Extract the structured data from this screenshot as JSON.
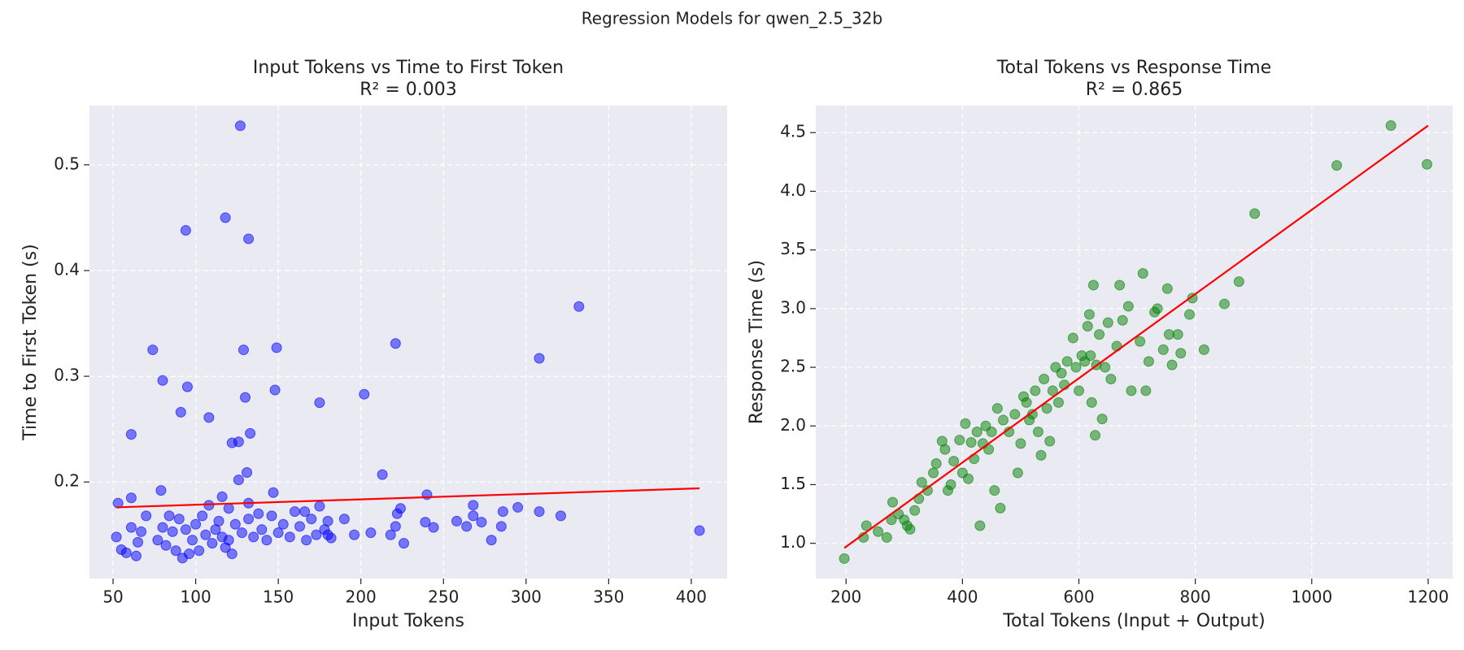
{
  "title": "Regression Models for qwen_2.5_32b",
  "chart_data": [
    {
      "type": "scatter",
      "title": "Input Tokens vs Time to First Token",
      "subtitle": "R² = 0.003",
      "xlabel": "Input Tokens",
      "ylabel": "Time to First Token (s)",
      "color": "blue",
      "grid": true,
      "xlim": [
        35.7,
        421.7
      ],
      "ylim": [
        0.1087,
        0.556
      ],
      "xticks": [
        50,
        100,
        150,
        200,
        250,
        300,
        350,
        400
      ],
      "yticks": [
        0.2,
        0.3,
        0.4,
        0.5
      ],
      "x": [
        127,
        94,
        118,
        132,
        332,
        74,
        129,
        149,
        221,
        308,
        80,
        95,
        148,
        130,
        202,
        175,
        91,
        108,
        61,
        133,
        122,
        126,
        131,
        213,
        126,
        79,
        147,
        240,
        116,
        61,
        53,
        132,
        175,
        224,
        268,
        295,
        308,
        321,
        405,
        52,
        55,
        58,
        61,
        64,
        65,
        67,
        70,
        77,
        80,
        82,
        84,
        86,
        88,
        90,
        92,
        94,
        96,
        98,
        100,
        102,
        104,
        106,
        108,
        110,
        112,
        114,
        116,
        118,
        120,
        122,
        124,
        128,
        132,
        135,
        138,
        140,
        143,
        146,
        150,
        153,
        157,
        160,
        163,
        167,
        170,
        173,
        178,
        180,
        182,
        190,
        196,
        206,
        218,
        221,
        222,
        226,
        239,
        244,
        258,
        264,
        268,
        273,
        279,
        285,
        286,
        180,
        166,
        120
      ],
      "y": [
        0.537,
        0.438,
        0.45,
        0.43,
        0.366,
        0.325,
        0.325,
        0.327,
        0.331,
        0.317,
        0.296,
        0.29,
        0.287,
        0.28,
        0.283,
        0.275,
        0.266,
        0.261,
        0.245,
        0.246,
        0.237,
        0.238,
        0.209,
        0.207,
        0.202,
        0.192,
        0.19,
        0.188,
        0.186,
        0.185,
        0.18,
        0.18,
        0.177,
        0.175,
        0.178,
        0.176,
        0.172,
        0.168,
        0.154,
        0.148,
        0.136,
        0.133,
        0.157,
        0.13,
        0.143,
        0.153,
        0.168,
        0.145,
        0.157,
        0.14,
        0.168,
        0.153,
        0.135,
        0.165,
        0.128,
        0.155,
        0.132,
        0.145,
        0.16,
        0.135,
        0.168,
        0.15,
        0.178,
        0.142,
        0.155,
        0.163,
        0.148,
        0.138,
        0.175,
        0.132,
        0.16,
        0.152,
        0.165,
        0.148,
        0.17,
        0.155,
        0.145,
        0.168,
        0.152,
        0.16,
        0.148,
        0.172,
        0.158,
        0.145,
        0.165,
        0.15,
        0.155,
        0.163,
        0.147,
        0.165,
        0.15,
        0.152,
        0.15,
        0.158,
        0.17,
        0.142,
        0.162,
        0.157,
        0.163,
        0.158,
        0.168,
        0.162,
        0.145,
        0.158,
        0.172,
        0.15,
        0.172,
        0.145
      ],
      "fit": {
        "color": "red",
        "x": [
          52,
          405
        ],
        "y": [
          0.176,
          0.194
        ]
      }
    },
    {
      "type": "scatter",
      "title": "Total Tokens vs Response Time",
      "subtitle": "R² = 0.865",
      "xlabel": "Total Tokens (Input + Output)",
      "ylabel": "Response Time (s)",
      "color": "green",
      "grid": true,
      "xlim": [
        148,
        1242
      ],
      "ylim": [
        0.7,
        4.73
      ],
      "xticks": [
        200,
        400,
        600,
        800,
        1000,
        1200
      ],
      "yticks": [
        {
          "value": 1,
          "label": "1.0"
        },
        1.5,
        {
          "value": 2,
          "label": "2.0"
        },
        2.5,
        {
          "value": 3,
          "label": "3.0"
        },
        3.5,
        {
          "value": 4,
          "label": "4.0"
        },
        4.5
      ],
      "x": [
        197,
        230,
        235,
        255,
        270,
        278,
        280,
        290,
        300,
        305,
        310,
        318,
        325,
        330,
        340,
        350,
        355,
        365,
        370,
        375,
        380,
        385,
        395,
        400,
        405,
        410,
        415,
        420,
        425,
        430,
        435,
        440,
        445,
        450,
        455,
        460,
        465,
        470,
        480,
        490,
        495,
        500,
        505,
        510,
        515,
        520,
        525,
        530,
        535,
        540,
        545,
        550,
        555,
        560,
        565,
        570,
        575,
        580,
        590,
        595,
        600,
        605,
        610,
        615,
        618,
        620,
        622,
        625,
        628,
        630,
        635,
        640,
        645,
        650,
        655,
        665,
        670,
        675,
        685,
        690,
        705,
        710,
        715,
        720,
        730,
        735,
        745,
        752,
        755,
        760,
        770,
        775,
        790,
        795,
        815,
        850,
        875,
        902,
        1043,
        1136,
        1198
      ],
      "y": [
        0.87,
        1.05,
        1.15,
        1.1,
        1.05,
        1.2,
        1.35,
        1.25,
        1.2,
        1.15,
        1.12,
        1.28,
        1.38,
        1.52,
        1.45,
        1.6,
        1.68,
        1.87,
        1.8,
        1.45,
        1.5,
        1.7,
        1.88,
        1.6,
        2.02,
        1.55,
        1.86,
        1.72,
        1.95,
        1.15,
        1.85,
        2.0,
        1.8,
        1.95,
        1.45,
        2.15,
        1.3,
        2.05,
        1.95,
        2.1,
        1.6,
        1.85,
        2.25,
        2.2,
        2.05,
        2.1,
        2.3,
        1.95,
        1.75,
        2.4,
        2.15,
        1.87,
        2.3,
        2.5,
        2.2,
        2.45,
        2.35,
        2.55,
        2.75,
        2.5,
        2.3,
        2.6,
        2.55,
        2.85,
        2.95,
        2.6,
        2.2,
        3.2,
        1.92,
        2.52,
        2.78,
        2.06,
        2.5,
        2.88,
        2.4,
        2.68,
        3.2,
        2.9,
        3.02,
        2.3,
        2.72,
        3.3,
        2.3,
        2.55,
        2.97,
        3.0,
        2.65,
        3.17,
        2.78,
        2.52,
        2.78,
        2.62,
        2.95,
        3.09,
        2.65,
        3.04,
        3.23,
        3.81,
        4.22,
        4.56,
        4.23
      ],
      "fit": {
        "color": "red",
        "x": [
          197,
          1200
        ],
        "y": [
          0.96,
          4.56
        ]
      }
    }
  ]
}
